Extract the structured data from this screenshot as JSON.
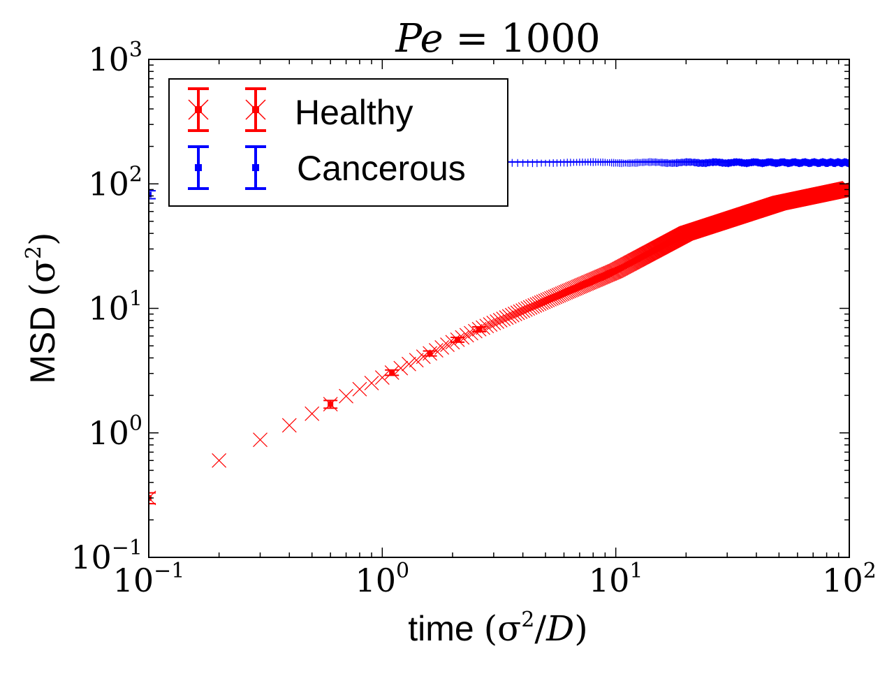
{
  "chart_data": {
    "type": "scatter",
    "title": "Pe = 1000",
    "xlabel": "time (σ²/D)",
    "ylabel": "MSD (σ²)",
    "xscale": "log",
    "yscale": "log",
    "xlim": [
      0.1,
      100
    ],
    "ylim": [
      0.1,
      1000
    ],
    "x_ticks": [
      {
        "base": "10",
        "exp": "−1",
        "value": 0.1
      },
      {
        "base": "10",
        "exp": "0",
        "value": 1
      },
      {
        "base": "10",
        "exp": "1",
        "value": 10
      },
      {
        "base": "10",
        "exp": "2",
        "value": 100
      }
    ],
    "y_ticks": [
      {
        "base": "10",
        "exp": "−1",
        "value": 0.1
      },
      {
        "base": "10",
        "exp": "0",
        "value": 1
      },
      {
        "base": "10",
        "exp": "1",
        "value": 10
      },
      {
        "base": "10",
        "exp": "2",
        "value": 100
      },
      {
        "base": "10",
        "exp": "3",
        "value": 1000
      }
    ],
    "grid": false,
    "legend_position": "top-left",
    "series": [
      {
        "name": "Healthy",
        "color": "#ff0000",
        "marker": "x",
        "model": {
          "asymptote": 110,
          "tau": 22,
          "dt": 0.1,
          "t_max": 100
        },
        "points_sampled": [
          [
            0.1,
            0.3
          ],
          [
            0.2,
            0.6
          ],
          [
            0.3,
            0.88
          ],
          [
            0.4,
            1.15
          ],
          [
            0.6,
            1.7
          ],
          [
            1.1,
            3.05
          ],
          [
            1.6,
            4.35
          ],
          [
            2.1,
            5.6
          ],
          [
            2.6,
            6.8
          ],
          [
            10,
            20
          ],
          [
            20,
            40
          ],
          [
            50,
            70
          ],
          [
            100,
            92
          ]
        ],
        "error_bars": [
          [
            0.1,
            0.3,
            0.03
          ],
          [
            0.6,
            1.7,
            0.12
          ],
          [
            1.1,
            3.05,
            0.15
          ],
          [
            1.6,
            4.35,
            0.2
          ],
          [
            2.1,
            5.6,
            0.25
          ],
          [
            2.6,
            6.8,
            0.3
          ]
        ]
      },
      {
        "name": "Cancerous",
        "color": "#0000ff",
        "marker": "x",
        "model": {
          "plateau": 150,
          "dt": 0.1,
          "t_max": 100
        },
        "points_sampled": [
          [
            0.1,
            82
          ],
          [
            1,
            150
          ],
          [
            10,
            150
          ],
          [
            100,
            150
          ]
        ],
        "error_bars": [
          [
            0.1,
            82,
            6
          ],
          [
            0.6,
            145,
            10
          ],
          [
            100,
            150,
            12
          ]
        ]
      }
    ]
  }
}
